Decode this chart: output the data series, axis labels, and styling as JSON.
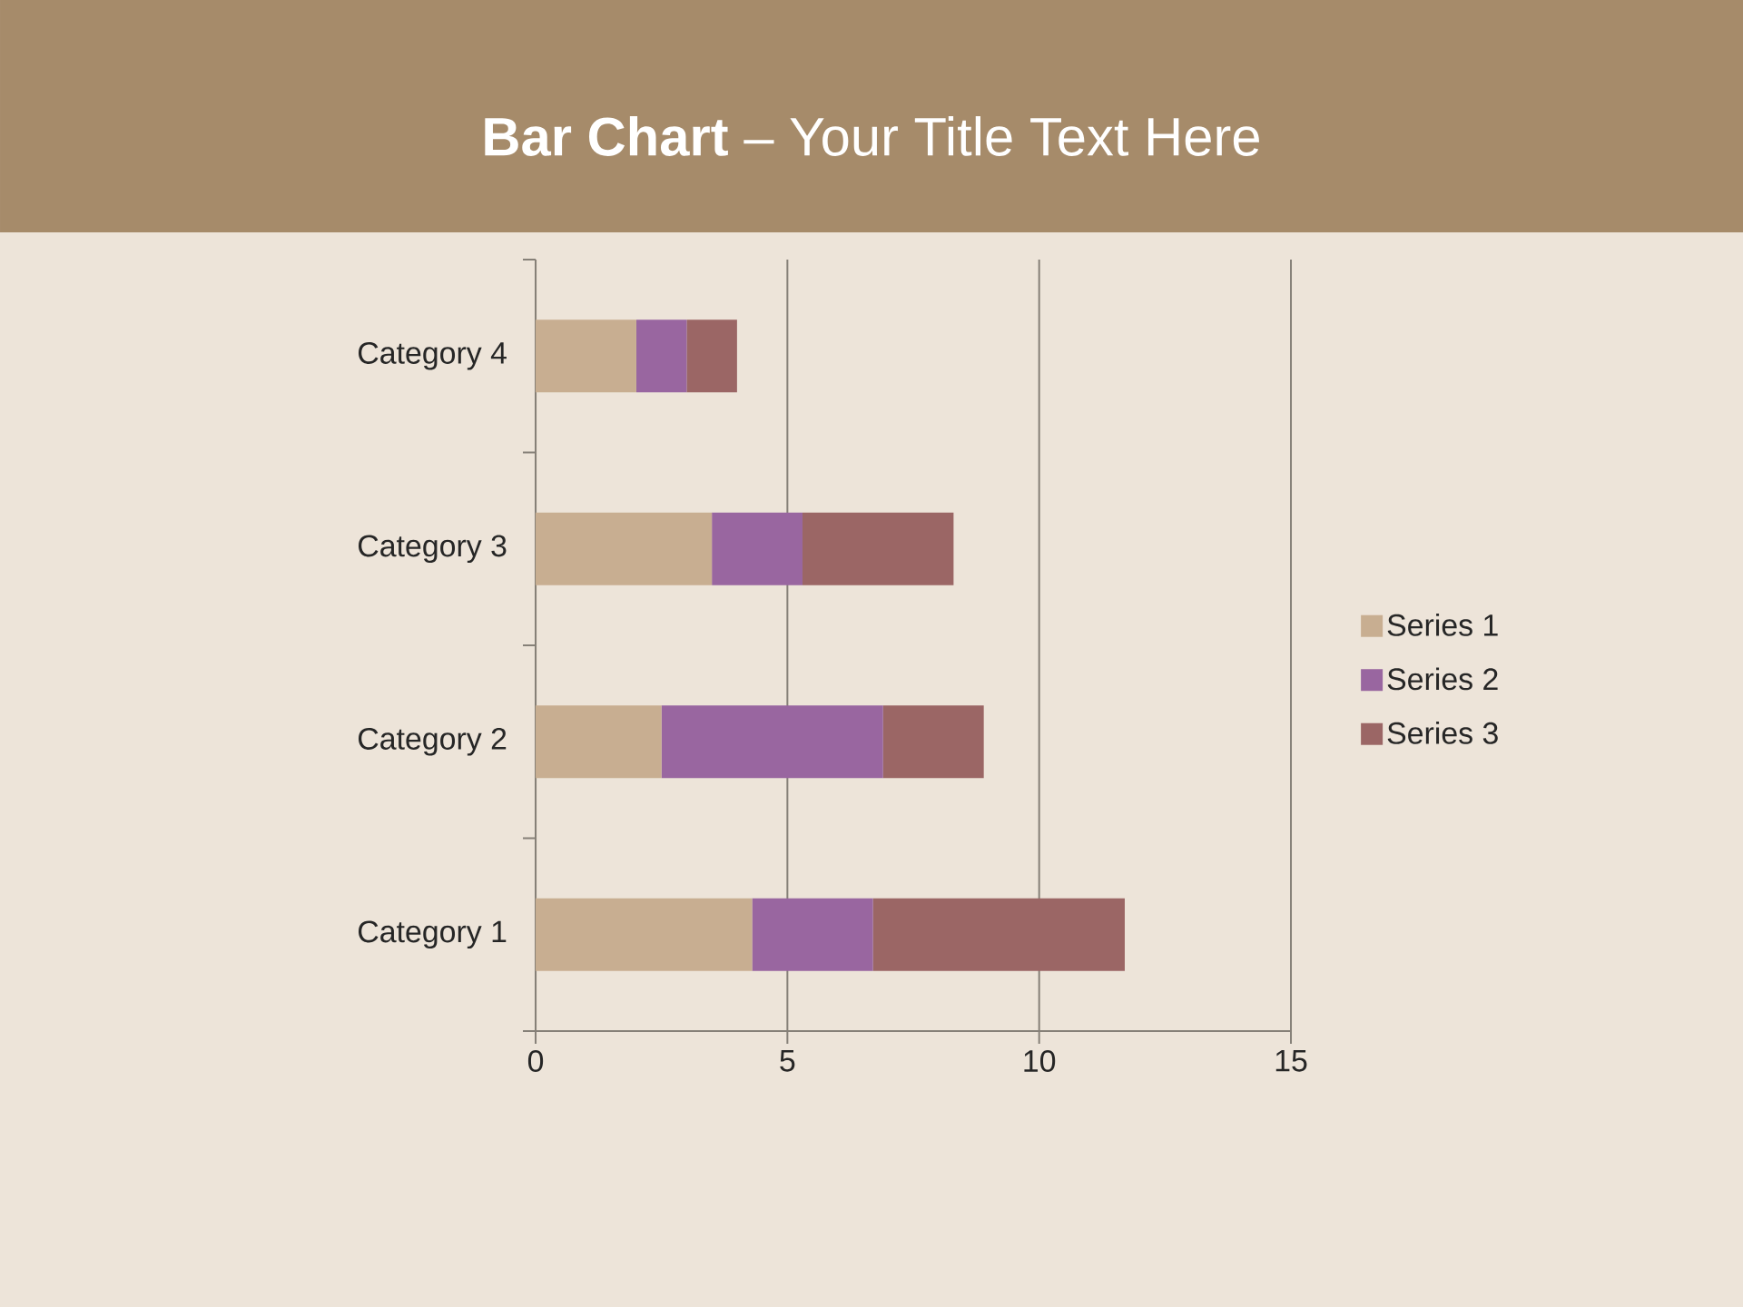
{
  "chart_data": {
    "type": "bar",
    "orientation": "horizontal",
    "stacked": true,
    "title": "**Bar Chart** – Your Title Text Here",
    "categories": [
      "Category 4",
      "Category 3",
      "Category 2",
      "Category 1"
    ],
    "series": [
      {
        "name": "Series 1",
        "color": "#c8ae91",
        "values": [
          2,
          3.5,
          2.5,
          4.3
        ]
      },
      {
        "name": "Series 2",
        "color": "#9966a0",
        "values": [
          1,
          1.8,
          4.4,
          2.4
        ]
      },
      {
        "name": "Series 3",
        "color": "#9b6665",
        "values": [
          1,
          3,
          2,
          5
        ]
      }
    ],
    "xlim": [
      0,
      15
    ],
    "xticks": [
      0,
      5,
      10,
      15
    ],
    "grid": "x",
    "legend": "right"
  }
}
